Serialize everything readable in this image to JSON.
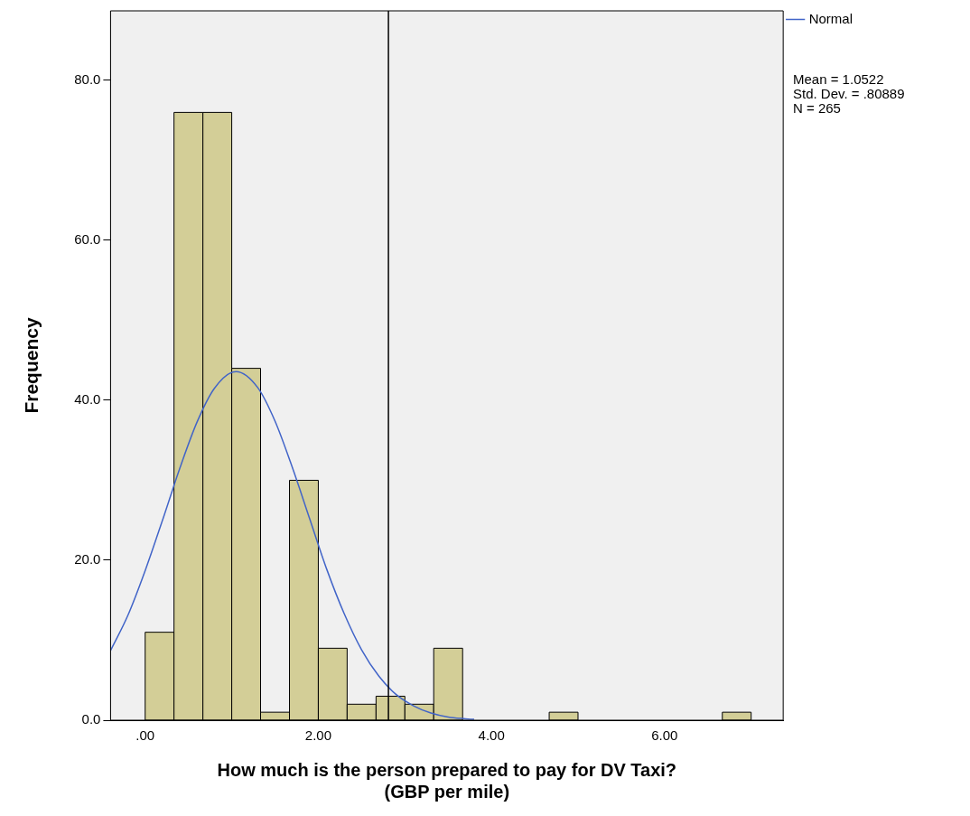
{
  "chart_data": {
    "type": "histogram",
    "xlabel": "How much is the person prepared to pay for DV Taxi?\n(GBP per mile)",
    "ylabel": "Frequency",
    "bins": [
      0,
      0.333,
      0.667,
      1,
      1.333,
      1.667,
      2,
      2.333,
      2.667,
      3,
      3.333,
      3.667,
      4,
      4.333,
      4.667,
      5,
      5.333,
      5.667,
      6,
      6.333,
      6.667,
      7
    ],
    "values": [
      11,
      76,
      76,
      44,
      1,
      30,
      9,
      2,
      3,
      2,
      9,
      0,
      0,
      0,
      1,
      0,
      0,
      0,
      0,
      0,
      1
    ],
    "color": "#d3ce97",
    "series": [
      {
        "type": "line",
        "name": "Normal",
        "color": "#4164c8",
        "x": [
          -0.4,
          -0.2,
          0,
          0.2,
          0.4,
          0.6,
          0.8,
          1.05,
          1.3,
          1.5,
          1.7,
          1.9,
          2.1,
          2.3,
          2.5,
          2.7,
          2.9,
          3.1,
          3.3,
          3.5,
          3.8
        ],
        "values": [
          8.7,
          13.1,
          18.7,
          25.0,
          31.5,
          37.3,
          41.5,
          43.6,
          41.6,
          37.4,
          31.6,
          25.2,
          18.8,
          13.3,
          8.8,
          5.5,
          3.2,
          1.8,
          0.9,
          0.4,
          0.1
        ]
      }
    ],
    "xlim": [
      -0.4,
      7.37
    ],
    "xticks": [
      {
        "value": 0,
        "label": ".00"
      },
      {
        "value": 2,
        "label": "2.00"
      },
      {
        "value": 4,
        "label": "4.00"
      },
      {
        "value": 6,
        "label": "6.00"
      }
    ],
    "ylim": [
      0,
      88.7
    ],
    "yticks": [
      {
        "value": 0,
        "label": "0.0"
      },
      {
        "value": 20,
        "label": "20.0"
      },
      {
        "value": 40,
        "label": "40.0"
      },
      {
        "value": 60,
        "label": "60.0"
      },
      {
        "value": 80,
        "label": "80.0"
      }
    ],
    "ref_lines": [
      {
        "axis": "x",
        "value": 2.81,
        "color": "#000000"
      }
    ],
    "annotations": [
      "Mean = 1.0522",
      "Std. Dev. = .80889",
      "N = 265"
    ],
    "grid": false,
    "legend": "top right",
    "marker": "none",
    "line_style": "solid"
  }
}
